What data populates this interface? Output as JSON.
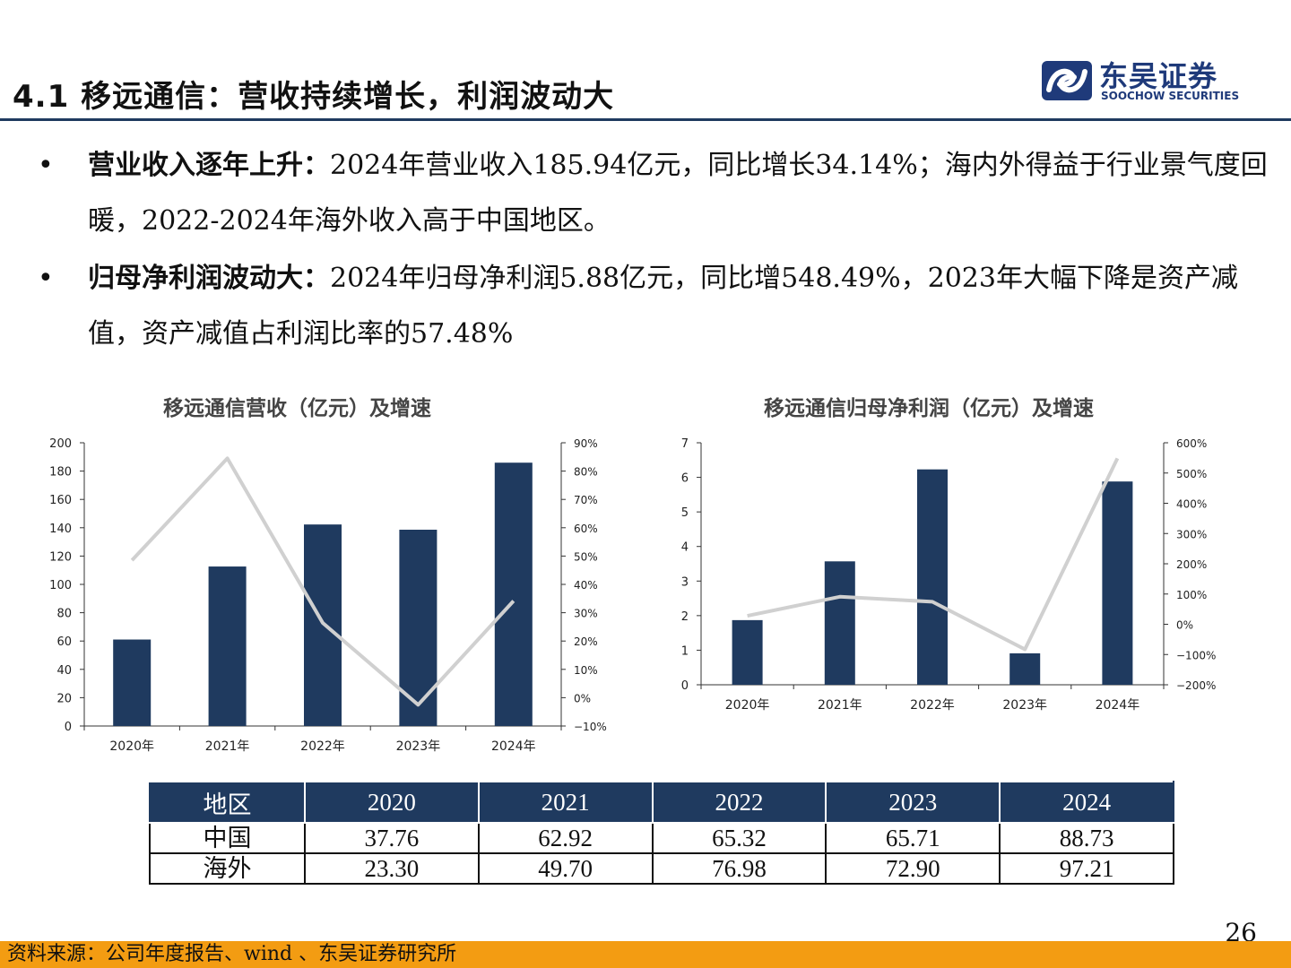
{
  "header": {
    "title": "4.1 移远通信：营收持续增长，利润波动大",
    "logo": {
      "cn": "东吴证券",
      "en": "SOOCHOW SECURITIES"
    }
  },
  "colors": {
    "navy": "#1f3a5f",
    "line_gray": "#d0d0d0",
    "footer_orange": "#f39c12"
  },
  "bullets": [
    {
      "lead": "营业收入逐年上升：",
      "body": "2024年营业收入185.94亿元，同比增长34.14%；海内外得益于行业景气度回暖，2022-2024年海外收入高于中国地区。"
    },
    {
      "lead": "归母净利润波动大：",
      "body": "2024年归母净利润5.88亿元，同比增548.49%，2023年大幅下降是资产减值，资产减值占利润比率的57.48%"
    }
  ],
  "chart_data": [
    {
      "type": "bar",
      "title": "移远通信营收（亿元）及增速",
      "categories": [
        "2020年",
        "2021年",
        "2022年",
        "2023年",
        "2024年"
      ],
      "values": [
        61.06,
        112.62,
        142.3,
        138.61,
        185.94
      ],
      "line_values": [
        48.5,
        84.5,
        26.4,
        -2.5,
        34.14
      ],
      "ylim": [
        0,
        200
      ],
      "yticks": [
        "0",
        "20",
        "40",
        "60",
        "80",
        "100",
        "120",
        "140",
        "160",
        "180",
        "200"
      ],
      "y2lim": [
        -10,
        90
      ],
      "y2ticks": [
        "−10%",
        "0%",
        "10%",
        "20%",
        "30%",
        "40%",
        "50%",
        "60%",
        "70%",
        "80%",
        "90%"
      ]
    },
    {
      "type": "bar",
      "title": "移远通信归母净利润（亿元）及增速",
      "categories": [
        "2020年",
        "2021年",
        "2022年",
        "2023年",
        "2024年"
      ],
      "values": [
        1.87,
        3.57,
        6.23,
        0.91,
        5.88
      ],
      "line_values": [
        28,
        91,
        74.5,
        -83,
        548.49
      ],
      "ylim": [
        0,
        7
      ],
      "yticks": [
        "0",
        "1",
        "2",
        "3",
        "4",
        "5",
        "6",
        "7"
      ],
      "y2lim": [
        -200,
        600
      ],
      "y2ticks": [
        "−200%",
        "−100%",
        "0%",
        "100%",
        "200%",
        "300%",
        "400%",
        "500%",
        "600%"
      ]
    }
  ],
  "table": {
    "headers": [
      "地区",
      "2020",
      "2021",
      "2022",
      "2023",
      "2024"
    ],
    "rows": [
      [
        "中国",
        "37.76",
        "62.92",
        "65.32",
        "65.71",
        "88.73"
      ],
      [
        "海外",
        "23.30",
        "49.70",
        "76.98",
        "72.90",
        "97.21"
      ]
    ]
  },
  "page_number": "26",
  "footer": {
    "source": "资料来源：公司年度报告、wind 、东吴证券研究所"
  }
}
